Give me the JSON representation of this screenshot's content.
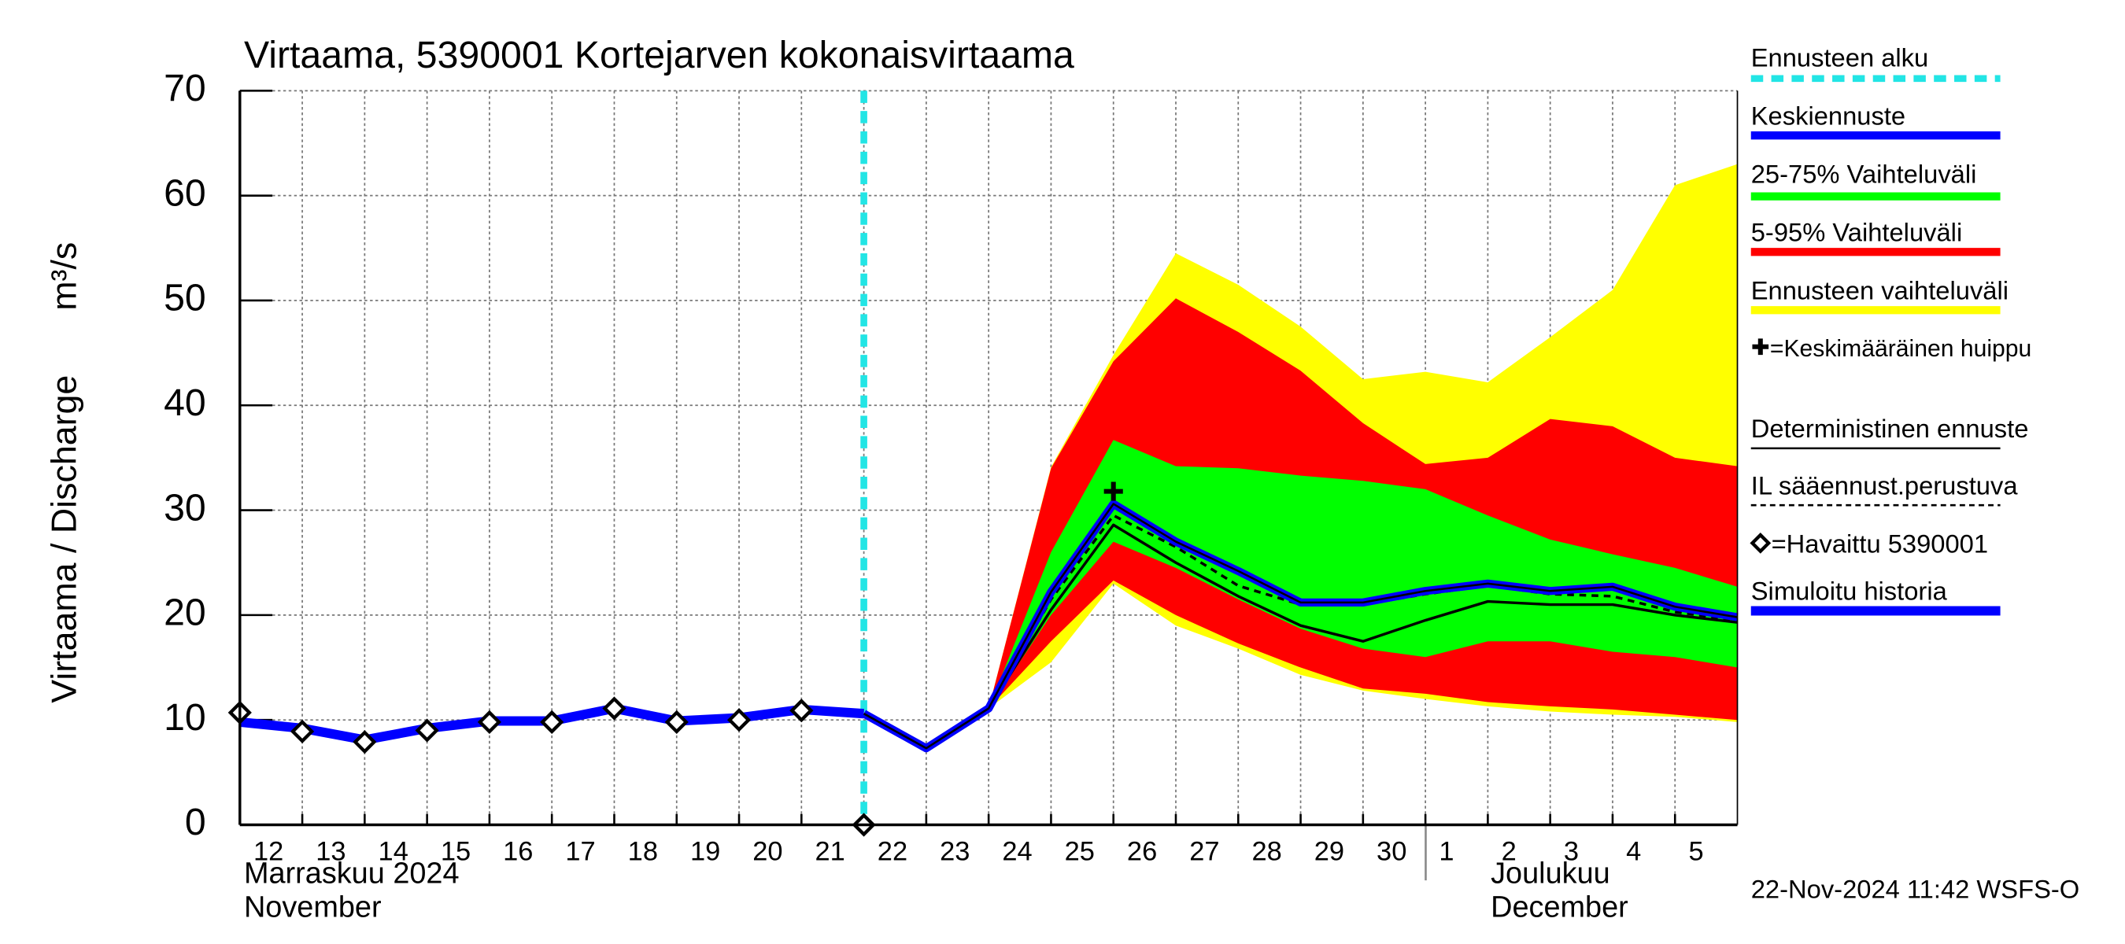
{
  "chart_data": {
    "type": "line",
    "title": "Virtaama, 5390001 Kortejarven kokonaisvirtaama",
    "y_label": "Virtaama / Discharge",
    "y_unit": "m³/s",
    "month_labels": [
      {
        "top": "Marraskuu 2024",
        "bottom": "November"
      },
      {
        "top": "Joulukuu",
        "bottom": "December"
      }
    ],
    "timestamp": "22-Nov-2024 11:42 WSFS-O",
    "x": [
      "2024-11-12",
      "2024-11-13",
      "2024-11-14",
      "2024-11-15",
      "2024-11-16",
      "2024-11-17",
      "2024-11-18",
      "2024-11-19",
      "2024-11-20",
      "2024-11-21",
      "2024-11-22",
      "2024-11-23",
      "2024-11-24",
      "2024-11-25",
      "2024-11-26",
      "2024-11-27",
      "2024-11-28",
      "2024-11-29",
      "2024-11-30",
      "2024-12-01",
      "2024-12-02",
      "2024-12-03",
      "2024-12-04",
      "2024-12-05",
      "2024-12-06"
    ],
    "xlim": [
      "2024-11-12",
      "2024-12-06"
    ],
    "xticks": [
      {
        "value": "2024-11-12",
        "label": "12"
      },
      {
        "value": "2024-11-13",
        "label": "13"
      },
      {
        "value": "2024-11-14",
        "label": "14"
      },
      {
        "value": "2024-11-15",
        "label": "15"
      },
      {
        "value": "2024-11-16",
        "label": "16"
      },
      {
        "value": "2024-11-17",
        "label": "17"
      },
      {
        "value": "2024-11-18",
        "label": "18"
      },
      {
        "value": "2024-11-19",
        "label": "19"
      },
      {
        "value": "2024-11-20",
        "label": "20"
      },
      {
        "value": "2024-11-21",
        "label": "21"
      },
      {
        "value": "2024-11-22",
        "label": "22"
      },
      {
        "value": "2024-11-23",
        "label": "23"
      },
      {
        "value": "2024-11-24",
        "label": "24"
      },
      {
        "value": "2024-11-25",
        "label": "25"
      },
      {
        "value": "2024-11-26",
        "label": "26"
      },
      {
        "value": "2024-11-27",
        "label": "27"
      },
      {
        "value": "2024-11-28",
        "label": "28"
      },
      {
        "value": "2024-11-29",
        "label": "29"
      },
      {
        "value": "2024-11-30",
        "label": "30"
      },
      {
        "value": "2024-12-01",
        "label": "1"
      },
      {
        "value": "2024-12-02",
        "label": "2"
      },
      {
        "value": "2024-12-03",
        "label": "3"
      },
      {
        "value": "2024-12-04",
        "label": "4"
      },
      {
        "value": "2024-12-05",
        "label": "5"
      }
    ],
    "ylim": [
      0,
      70
    ],
    "yticks": [
      0,
      10,
      20,
      30,
      40,
      50,
      60,
      70
    ],
    "grid": true,
    "forecast_start": {
      "name": "Ennusteen alku",
      "x": "2024-11-22",
      "color": "#22e5e5"
    },
    "series": [
      {
        "name": "Keskiennuste",
        "color": "#0000ff",
        "style": "median",
        "values": [
          null,
          null,
          null,
          null,
          null,
          null,
          null,
          null,
          null,
          null,
          10.6,
          7.3,
          11.1,
          22.2,
          30.6,
          27.0,
          24.2,
          21.2,
          21.2,
          22.3,
          23.0,
          22.3,
          22.7,
          20.8,
          19.8
        ]
      },
      {
        "name": "25-75% Vaihteluväli",
        "color": "#00ff00",
        "style": "band",
        "upper": [
          null,
          null,
          null,
          null,
          null,
          null,
          null,
          null,
          null,
          null,
          null,
          null,
          11.1,
          26.0,
          36.7,
          34.2,
          34.0,
          33.3,
          32.8,
          32.0,
          29.5,
          27.2,
          25.8,
          24.5,
          22.7
        ],
        "lower": [
          null,
          null,
          null,
          null,
          null,
          null,
          null,
          null,
          null,
          null,
          null,
          null,
          11.1,
          20.0,
          27.0,
          24.5,
          21.5,
          18.7,
          16.8,
          16.0,
          17.5,
          17.5,
          16.5,
          16.0,
          15.0
        ]
      },
      {
        "name": "5-95% Vaihteluväli",
        "color": "#ff0000",
        "style": "band",
        "upper": [
          null,
          null,
          null,
          null,
          null,
          null,
          null,
          null,
          null,
          null,
          null,
          null,
          11.1,
          34.0,
          44.2,
          50.2,
          47.0,
          43.3,
          38.3,
          34.4,
          35.0,
          38.7,
          38.0,
          35.0,
          34.2
        ],
        "lower": [
          null,
          null,
          null,
          null,
          null,
          null,
          null,
          null,
          null,
          null,
          null,
          null,
          11.1,
          17.5,
          23.3,
          20.0,
          17.3,
          15.0,
          13.0,
          12.5,
          11.7,
          11.3,
          11.0,
          10.5,
          10.0
        ]
      },
      {
        "name": "Ennusteen vaihteluväli",
        "color": "#ffff00",
        "style": "band",
        "upper": [
          null,
          null,
          null,
          null,
          null,
          null,
          null,
          null,
          null,
          null,
          null,
          null,
          11.1,
          34.1,
          44.8,
          54.5,
          51.5,
          47.5,
          42.5,
          43.2,
          42.2,
          46.5,
          51.0,
          61.0,
          63.0
        ],
        "lower": [
          null,
          null,
          null,
          null,
          null,
          null,
          null,
          null,
          null,
          null,
          null,
          null,
          11.1,
          15.5,
          23.0,
          19.0,
          16.8,
          14.3,
          12.8,
          12.0,
          11.3,
          10.8,
          10.5,
          10.3,
          9.8
        ]
      },
      {
        "name": "=Keskimääräinen huippu",
        "color": "#000000",
        "style": "peak",
        "values": [
          null,
          null,
          null,
          null,
          null,
          null,
          null,
          null,
          null,
          null,
          null,
          null,
          null,
          null,
          31.8,
          null,
          null,
          null,
          null,
          null,
          null,
          null,
          null,
          null,
          null
        ]
      },
      {
        "name": "Deterministinen ennuste",
        "color": "#000000",
        "style": "thin",
        "values": [
          null,
          null,
          null,
          null,
          null,
          null,
          null,
          null,
          null,
          null,
          10.6,
          7.3,
          11.1,
          20.5,
          28.6,
          25.0,
          21.8,
          19.0,
          17.5,
          19.5,
          21.3,
          21.0,
          21.0,
          20.0,
          19.3
        ]
      },
      {
        "name": "IL sääennust.perustuva",
        "color": "#000000",
        "style": "dashed",
        "values": [
          null,
          null,
          null,
          null,
          null,
          null,
          null,
          null,
          null,
          null,
          null,
          null,
          11.1,
          21.5,
          29.5,
          26.5,
          22.8,
          21.0,
          21.0,
          22.0,
          22.8,
          22.0,
          21.8,
          20.3,
          19.5
        ]
      },
      {
        "name": "=Havaittu 5390001",
        "color": "#000000",
        "style": "observed",
        "values": [
          10.7,
          8.9,
          7.9,
          9.0,
          9.8,
          9.8,
          11.1,
          9.8,
          10.0,
          10.9,
          0,
          null,
          null,
          null,
          null,
          null,
          null,
          null,
          null,
          null,
          null,
          null,
          null,
          null,
          null
        ]
      },
      {
        "name": "Simuloitu historia",
        "color": "#0000ff",
        "style": "history",
        "values": [
          9.8,
          9.2,
          8.1,
          9.2,
          9.9,
          9.9,
          11.1,
          9.9,
          10.2,
          11.0,
          10.6,
          null,
          null,
          null,
          null,
          null,
          null,
          null,
          null,
          null,
          null,
          null,
          null,
          null,
          null
        ]
      }
    ]
  }
}
